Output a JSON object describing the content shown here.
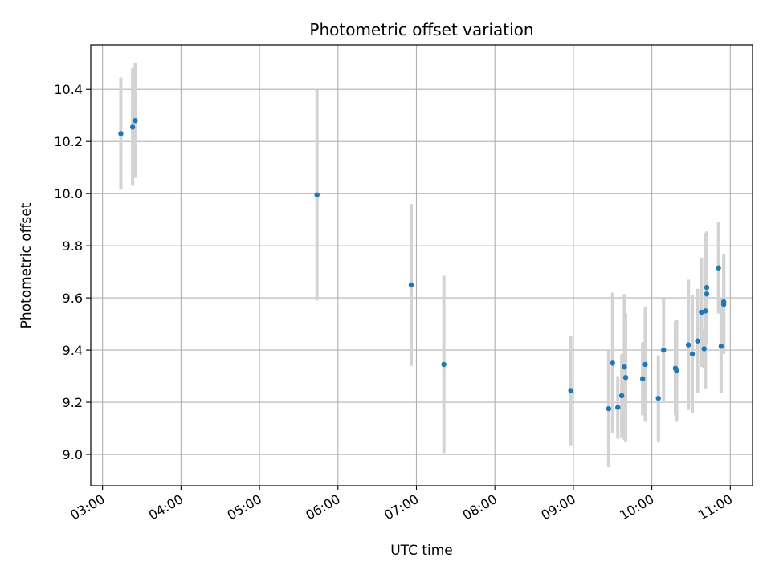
{
  "chart_data": {
    "type": "scatter",
    "title": "Photometric offset variation",
    "xlabel": "UTC time",
    "ylabel": "Photometric offset",
    "x_axis_type": "time",
    "xlim": [
      "02:51",
      "11:17"
    ],
    "ylim": [
      8.88,
      10.57
    ],
    "x_ticks": [
      "03:00",
      "04:00",
      "05:00",
      "06:00",
      "07:00",
      "08:00",
      "09:00",
      "10:00",
      "11:00"
    ],
    "y_ticks": [
      "9.0",
      "9.2",
      "9.4",
      "9.6",
      "9.8",
      "10.0",
      "10.2",
      "10.4"
    ],
    "grid": true,
    "legend": "none",
    "marker_color": "#1f77b4",
    "errorbar_color": "#d3d3d3",
    "series": [
      {
        "points": [
          {
            "x": "03:14",
            "y": 10.23,
            "err": 0.215
          },
          {
            "x": "03:23",
            "y": 10.255,
            "err": 0.225
          },
          {
            "x": "03:25",
            "y": 10.28,
            "err": 0.22
          },
          {
            "x": "05:44",
            "y": 9.995,
            "err": 0.405
          },
          {
            "x": "06:56",
            "y": 9.65,
            "err": 0.31
          },
          {
            "x": "07:21",
            "y": 9.345,
            "err": 0.34
          },
          {
            "x": "08:58",
            "y": 9.245,
            "err": 0.21
          },
          {
            "x": "09:27",
            "y": 9.175,
            "err": 0.225
          },
          {
            "x": "09:30",
            "y": 9.35,
            "err": 0.27
          },
          {
            "x": "09:34",
            "y": 9.18,
            "err": 0.12
          },
          {
            "x": "09:37",
            "y": 9.225,
            "err": 0.16
          },
          {
            "x": "09:39",
            "y": 9.335,
            "err": 0.28
          },
          {
            "x": "09:40",
            "y": 9.295,
            "err": 0.245
          },
          {
            "x": "09:53",
            "y": 9.29,
            "err": 0.14
          },
          {
            "x": "09:55",
            "y": 9.345,
            "err": 0.22
          },
          {
            "x": "10:05",
            "y": 9.215,
            "err": 0.165
          },
          {
            "x": "10:09",
            "y": 9.4,
            "err": 0.195
          },
          {
            "x": "10:18",
            "y": 9.33,
            "err": 0.18
          },
          {
            "x": "10:19",
            "y": 9.32,
            "err": 0.195
          },
          {
            "x": "10:28",
            "y": 9.42,
            "err": 0.25
          },
          {
            "x": "10:31",
            "y": 9.385,
            "err": 0.225
          },
          {
            "x": "10:35",
            "y": 9.435,
            "err": 0.2
          },
          {
            "x": "10:38",
            "y": 9.545,
            "err": 0.21
          },
          {
            "x": "10:40",
            "y": 9.405,
            "err": 0.075
          },
          {
            "x": "10:41",
            "y": 9.55,
            "err": 0.3
          },
          {
            "x": "10:42",
            "y": 9.64,
            "err": 0.215
          },
          {
            "x": "10:42",
            "y": 9.615,
            "err": 0.165
          },
          {
            "x": "10:51",
            "y": 9.715,
            "err": 0.175
          },
          {
            "x": "10:53",
            "y": 9.415,
            "err": 0.18
          },
          {
            "x": "10:55",
            "y": 9.585,
            "err": 0.185
          },
          {
            "x": "10:55",
            "y": 9.575,
            "err": 0.19
          }
        ]
      }
    ]
  }
}
